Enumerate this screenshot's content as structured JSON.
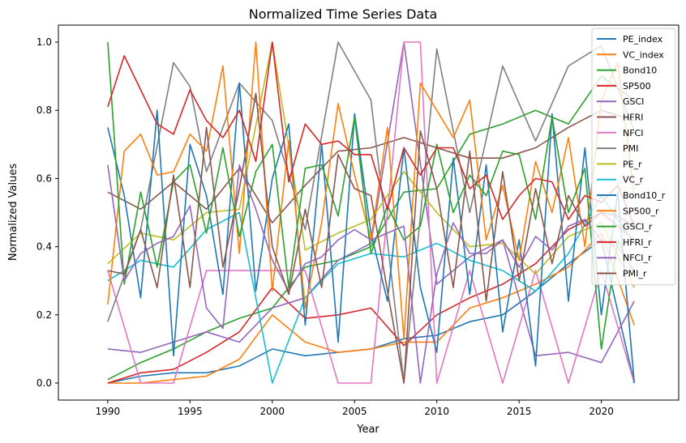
{
  "chart_data": {
    "type": "line",
    "title": "Normalized Time Series Data",
    "xlabel": "Year",
    "ylabel": "Normalized Values",
    "xlim": [
      1987.0,
      2024.7
    ],
    "ylim": [
      -0.05,
      1.05
    ],
    "xticks": [
      1990,
      1995,
      2000,
      2005,
      2010,
      2015,
      2020
    ],
    "yticks": [
      0.0,
      0.2,
      0.4,
      0.6,
      0.8,
      1.0
    ],
    "grid": false,
    "legend_position": "top-right",
    "series": [
      {
        "name": "PE_index",
        "color": "#1f77b4",
        "x": [
          1990,
          1992,
          1994,
          1996,
          1998,
          2000,
          2002,
          2004,
          2006,
          2008,
          2010,
          2012,
          2014,
          2016,
          2018,
          2020,
          2022
        ],
        "y": [
          0.0,
          0.02,
          0.03,
          0.03,
          0.05,
          0.1,
          0.08,
          0.09,
          0.1,
          0.13,
          0.14,
          0.18,
          0.2,
          0.27,
          0.35,
          0.42,
          0.0
        ]
      },
      {
        "name": "VC_index",
        "color": "#ff7f0e",
        "x": [
          1990,
          1992,
          1994,
          1996,
          1998,
          2000,
          2002,
          2004,
          2006,
          2008,
          2010,
          2012,
          2014,
          2016,
          2018,
          2020,
          2022
        ],
        "y": [
          0.0,
          0.0,
          0.01,
          0.02,
          0.07,
          0.2,
          0.12,
          0.09,
          0.1,
          0.12,
          0.12,
          0.22,
          0.25,
          0.29,
          0.34,
          0.44,
          0.17
        ]
      },
      {
        "name": "Bond10",
        "color": "#2ca02c",
        "x": [
          1990,
          1992,
          1994,
          1996,
          1998,
          2000,
          2002,
          2004,
          2006,
          2008,
          2010,
          2012,
          2014,
          2016,
          2018,
          2020,
          2022
        ],
        "y": [
          0.01,
          0.06,
          0.1,
          0.15,
          0.19,
          0.22,
          0.34,
          0.36,
          0.4,
          0.56,
          0.57,
          0.73,
          0.76,
          0.8,
          0.76,
          0.9,
          0.83
        ]
      },
      {
        "name": "SP500",
        "color": "#d62728",
        "x": [
          1990,
          1992,
          1994,
          1996,
          1998,
          2000,
          2002,
          2004,
          2006,
          2008,
          2010,
          2012,
          2014,
          2016,
          2018,
          2020,
          2022
        ],
        "y": [
          0.0,
          0.03,
          0.04,
          0.09,
          0.15,
          0.28,
          0.19,
          0.2,
          0.22,
          0.11,
          0.2,
          0.25,
          0.29,
          0.35,
          0.45,
          0.5,
          0.42
        ]
      },
      {
        "name": "GSCI",
        "color": "#9467bd",
        "x": [
          1990,
          1992,
          1994,
          1996,
          1998,
          2000,
          2002,
          2004,
          2006,
          2008,
          2010,
          2012,
          2014,
          2016,
          2018,
          2020,
          2022
        ],
        "y": [
          0.1,
          0.09,
          0.12,
          0.15,
          0.12,
          0.22,
          0.25,
          0.36,
          0.41,
          1.0,
          0.29,
          0.37,
          0.42,
          0.08,
          0.09,
          0.06,
          0.24
        ]
      },
      {
        "name": "HFRI",
        "color": "#8c564b",
        "x": [
          1990,
          1992,
          1994,
          1996,
          1998,
          2000,
          2002,
          2004,
          2006,
          2008,
          2010,
          2012,
          2014,
          2016,
          2018,
          2020,
          2022
        ],
        "y": [
          0.56,
          0.51,
          0.59,
          0.51,
          0.63,
          0.47,
          0.58,
          0.68,
          0.69,
          0.72,
          0.69,
          0.66,
          0.66,
          0.69,
          0.75,
          0.8,
          0.77
        ]
      },
      {
        "name": "NFCI",
        "color": "#e377c2",
        "x": [
          1990,
          1992,
          1994,
          1996,
          1998,
          2000,
          2002,
          2004,
          2006,
          2008,
          2009,
          2010,
          2012,
          2014,
          2016,
          2018,
          2020,
          2022
        ],
        "y": [
          0.33,
          0.0,
          0.0,
          0.33,
          0.33,
          0.33,
          0.33,
          0.0,
          0.0,
          1.0,
          1.0,
          0.0,
          0.33,
          0.0,
          0.33,
          0.0,
          0.33,
          0.0
        ]
      },
      {
        "name": "PMI",
        "color": "#7f7f7f",
        "x": [
          1990,
          1992,
          1994,
          1995,
          1996,
          1998,
          2000,
          2002,
          2004,
          2006,
          2008,
          2010,
          2012,
          2014,
          2016,
          2018,
          2020,
          2022
        ],
        "y": [
          0.18,
          0.45,
          0.94,
          0.87,
          0.62,
          0.88,
          0.77,
          0.45,
          1.0,
          0.83,
          0.0,
          0.98,
          0.5,
          0.93,
          0.71,
          0.93,
          0.99,
          0.74
        ]
      },
      {
        "name": "PE_r",
        "color": "#bcbd22",
        "x": [
          1990,
          1992,
          1994,
          1996,
          1998,
          2000,
          2002,
          2004,
          2006,
          2008,
          2010,
          2012,
          2014,
          2016,
          2018,
          2020,
          2022
        ],
        "y": [
          0.35,
          0.44,
          0.42,
          0.5,
          0.51,
          1.0,
          0.39,
          0.44,
          0.48,
          0.62,
          0.5,
          0.4,
          0.41,
          0.32,
          0.43,
          0.47,
          0.28
        ]
      },
      {
        "name": "VC_r",
        "color": "#17becf",
        "x": [
          1990,
          1992,
          1994,
          1996,
          1998,
          2000,
          2002,
          2004,
          2006,
          2008,
          2010,
          2012,
          2014,
          2016,
          2018,
          2020,
          2022
        ],
        "y": [
          0.3,
          0.36,
          0.34,
          0.45,
          0.5,
          0.0,
          0.25,
          0.35,
          0.38,
          0.37,
          0.41,
          0.36,
          0.33,
          0.27,
          0.38,
          0.55,
          0.41
        ]
      },
      {
        "name": "Bond10_r",
        "color": "#1f77b4",
        "x": [
          1990,
          1991,
          1992,
          1993,
          1994,
          1995,
          1996,
          1997,
          1998,
          1999,
          2000,
          2001,
          2002,
          2003,
          2004,
          2005,
          2006,
          2007,
          2008,
          2009,
          2010,
          2011,
          2012,
          2013,
          2014,
          2015,
          2016,
          2017,
          2018,
          2019,
          2020,
          2021,
          2022
        ],
        "y": [
          0.75,
          0.55,
          0.25,
          0.8,
          0.08,
          0.7,
          0.55,
          0.26,
          0.88,
          0.27,
          0.6,
          0.76,
          0.17,
          0.7,
          0.12,
          0.79,
          0.44,
          0.24,
          0.69,
          0.28,
          0.09,
          0.66,
          0.26,
          0.64,
          0.15,
          0.42,
          0.05,
          0.79,
          0.24,
          0.69,
          0.2,
          0.56,
          0.0
        ]
      },
      {
        "name": "SP500_r",
        "color": "#ff7f0e",
        "x": [
          1990,
          1991,
          1992,
          1993,
          1994,
          1995,
          1996,
          1997,
          1998,
          1999,
          2000,
          2001,
          2002,
          2003,
          2004,
          2005,
          2006,
          2007,
          2008,
          2009,
          2010,
          2011,
          2012,
          2013,
          2014,
          2015,
          2016,
          2017,
          2018,
          2019,
          2020,
          2021,
          2022
        ],
        "y": [
          0.23,
          0.68,
          0.73,
          0.61,
          0.62,
          0.73,
          0.68,
          0.93,
          0.38,
          1.0,
          0.27,
          0.71,
          0.22,
          0.47,
          0.82,
          0.61,
          0.42,
          0.75,
          0.13,
          0.88,
          0.8,
          0.72,
          0.83,
          0.42,
          0.58,
          0.36,
          0.65,
          0.5,
          0.72,
          0.4,
          0.83,
          0.94,
          0.55
        ]
      },
      {
        "name": "GSCI_r",
        "color": "#2ca02c",
        "x": [
          1990,
          1991,
          1992,
          1993,
          1994,
          1995,
          1996,
          1997,
          1998,
          1999,
          2000,
          2001,
          2002,
          2003,
          2004,
          2005,
          2006,
          2007,
          2008,
          2009,
          2010,
          2011,
          2012,
          2013,
          2014,
          2015,
          2016,
          2017,
          2018,
          2019,
          2020,
          2021,
          2022
        ],
        "y": [
          1.0,
          0.29,
          0.56,
          0.34,
          0.59,
          0.64,
          0.44,
          0.69,
          0.43,
          0.62,
          0.7,
          0.28,
          0.63,
          0.64,
          0.49,
          0.78,
          0.38,
          0.52,
          0.42,
          0.46,
          0.7,
          0.5,
          0.61,
          0.55,
          0.68,
          0.67,
          0.48,
          0.78,
          0.5,
          0.63,
          0.1,
          0.42,
          0.32
        ]
      },
      {
        "name": "HFRI_r",
        "color": "#d62728",
        "x": [
          1990,
          1991,
          1992,
          1993,
          1994,
          1995,
          1996,
          1997,
          1998,
          1999,
          2000,
          2001,
          2002,
          2003,
          2004,
          2005,
          2006,
          2007,
          2008,
          2009,
          2010,
          2011,
          2012,
          2013,
          2014,
          2015,
          2016,
          2017,
          2018,
          2019,
          2020,
          2021,
          2022
        ],
        "y": [
          0.81,
          0.96,
          0.86,
          0.76,
          0.73,
          0.86,
          0.77,
          0.72,
          0.8,
          0.65,
          1.0,
          0.59,
          0.76,
          0.7,
          0.71,
          0.67,
          0.67,
          0.51,
          0.69,
          0.61,
          0.69,
          0.69,
          0.57,
          0.61,
          0.48,
          0.55,
          0.6,
          0.59,
          0.48,
          0.55,
          0.53,
          0.58,
          0.46
        ]
      },
      {
        "name": "NFCI_r",
        "color": "#9467bd",
        "x": [
          1990,
          1991,
          1992,
          1993,
          1994,
          1995,
          1996,
          1997,
          1998,
          1999,
          2000,
          2001,
          2002,
          2003,
          2004,
          2005,
          2006,
          2007,
          2008,
          2009,
          2010,
          2011,
          2012,
          2013,
          2014,
          2015,
          2016,
          2017,
          2018,
          2019,
          2020,
          2021,
          2022
        ],
        "y": [
          0.64,
          0.3,
          0.38,
          0.41,
          0.43,
          0.52,
          0.22,
          0.16,
          0.64,
          0.51,
          0.36,
          0.27,
          0.35,
          0.37,
          0.42,
          0.45,
          0.42,
          0.44,
          0.46,
          0.0,
          0.32,
          0.47,
          0.38,
          0.38,
          0.42,
          0.34,
          0.43,
          0.39,
          0.46,
          0.48,
          0.42,
          0.4,
          0.33
        ]
      },
      {
        "name": "PMI_r",
        "color": "#8c564b",
        "x": [
          1990,
          1991,
          1992,
          1993,
          1994,
          1995,
          1996,
          1997,
          1998,
          1999,
          2000,
          2001,
          2002,
          2003,
          2004,
          2005,
          2006,
          2007,
          2008,
          2009,
          2010,
          2011,
          2012,
          2013,
          2014,
          2015,
          2016,
          2017,
          2018,
          2019,
          2020,
          2021,
          2022
        ],
        "y": [
          0.33,
          0.32,
          0.45,
          0.28,
          0.61,
          0.28,
          0.75,
          0.34,
          0.57,
          0.85,
          0.4,
          0.26,
          0.51,
          0.28,
          0.67,
          0.57,
          0.55,
          0.27,
          0.0,
          0.74,
          0.57,
          0.28,
          0.68,
          0.24,
          0.62,
          0.3,
          0.57,
          0.35,
          0.55,
          0.46,
          0.5,
          0.49,
          0.46
        ]
      }
    ]
  }
}
